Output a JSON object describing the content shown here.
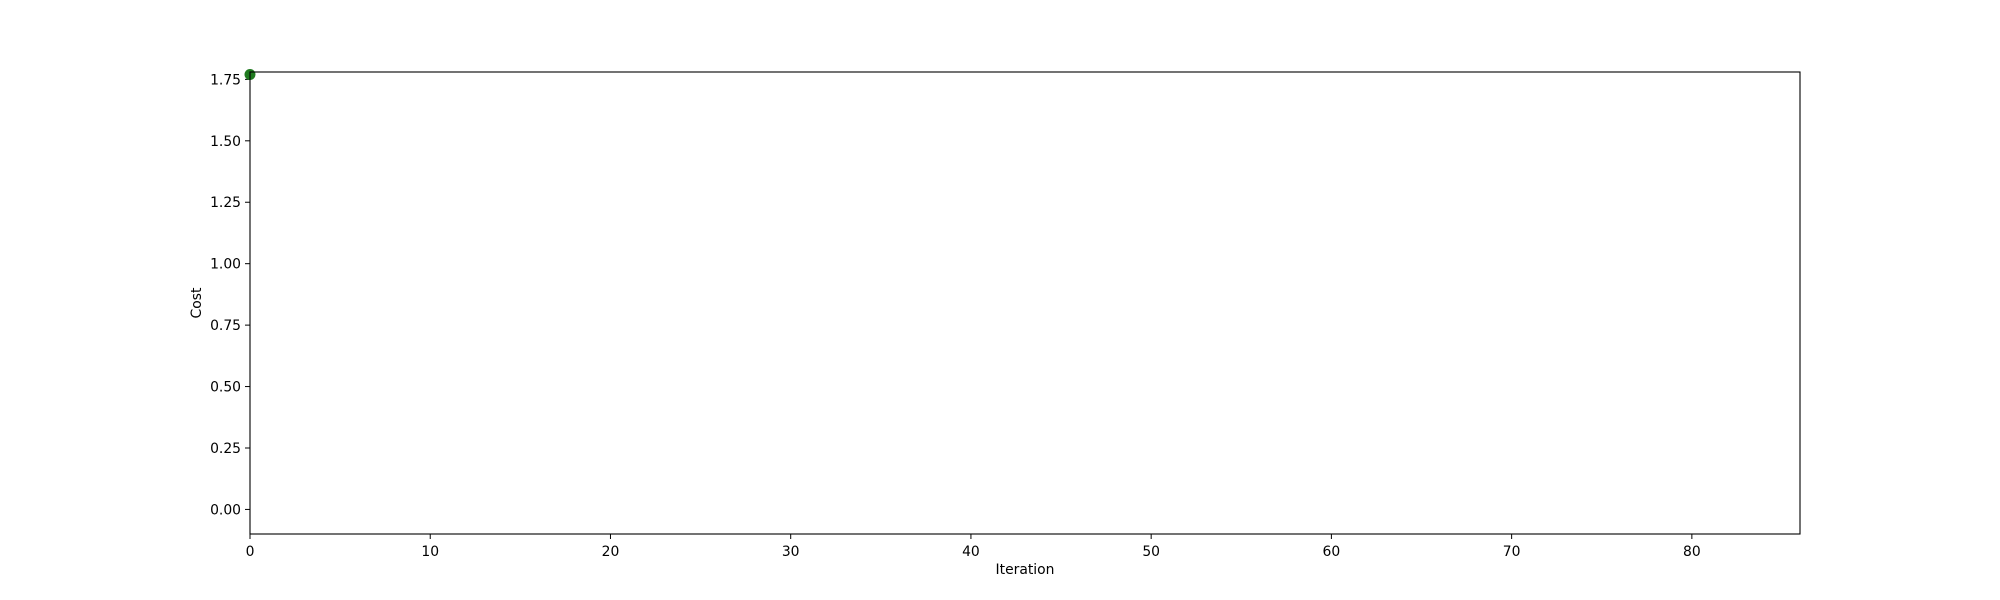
{
  "chart_data": {
    "type": "scatter",
    "title": "",
    "xlabel": "Iteration",
    "ylabel": "Cost",
    "xlim": [
      0,
      86
    ],
    "ylim": [
      -0.1,
      1.78
    ],
    "x_ticks": [
      0,
      10,
      20,
      30,
      40,
      50,
      60,
      70,
      80
    ],
    "x_tick_labels": [
      "0",
      "10",
      "20",
      "30",
      "40",
      "50",
      "60",
      "70",
      "80"
    ],
    "y_ticks": [
      0,
      0.25,
      0.5,
      0.75,
      1.0,
      1.25,
      1.5,
      1.75
    ],
    "y_tick_labels": [
      "0.00",
      "0.25",
      "0.50",
      "0.75",
      "1.00",
      "1.25",
      "1.50",
      "1.75"
    ],
    "grid": false,
    "legend": "none",
    "series": [
      {
        "color": "#1f7a1f",
        "points": [
          {
            "x": 0,
            "y": 1.77
          }
        ]
      }
    ]
  }
}
